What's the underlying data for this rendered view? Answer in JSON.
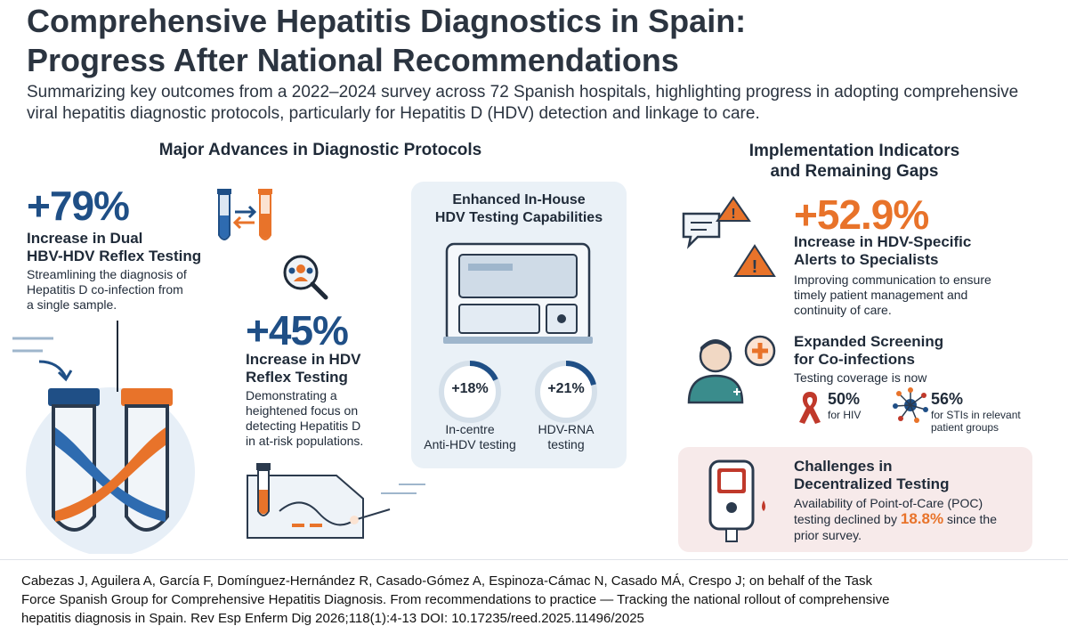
{
  "header": {
    "title_line1": "Comprehensive Hepatitis Diagnostics in Spain:",
    "title_line2": "Progress After National Recommendations",
    "subtitle": "Summarizing key outcomes from a 2022–2024 survey across 72 Spanish hospitals, highlighting progress in adopting comprehensive viral hepatitis diagnostic protocols, particularly for Hepatitis D (HDV) detection and linkage to care."
  },
  "left": {
    "heading": "Major Advances in Diagnostic Protocols",
    "stat1": {
      "value": "+79%",
      "title_line1": "Increase in Dual",
      "title_line2": "HBV-HDV Reflex Testing",
      "desc_line1": "Streamlining the diagnosis of",
      "desc_line2": "Hepatitis D co-infection from",
      "desc_line3": "a single sample."
    },
    "stat2": {
      "value": "+45%",
      "title_line1": "Increase in HDV",
      "title_line2": "Reflex Testing",
      "desc_line1": "Demonstrating a",
      "desc_line2": "heightened focus on",
      "desc_line3": "detecting Hepatitis D",
      "desc_line4": "in at-risk populations."
    }
  },
  "panel": {
    "title_line1": "Enhanced In-House",
    "title_line2": "HDV Testing Capabilities",
    "ring1": {
      "label": "+18%",
      "progress": 0.18,
      "cap_line1": "In-centre",
      "cap_line2": "Anti-HDV testing"
    },
    "ring2": {
      "label": "+21%",
      "progress": 0.21,
      "cap_line1": "HDV-RNA",
      "cap_line2": "testing"
    }
  },
  "right": {
    "heading_line1": "Implementation Indicators",
    "heading_line2": "and Remaining Gaps",
    "stat3": {
      "value": "+52.9%",
      "title_line1": "Increase in HDV-Specific",
      "title_line2": "Alerts to Specialists",
      "desc_line1": "Improving communication to ensure",
      "desc_line2": "timely patient management and",
      "desc_line3": "continuity of care."
    },
    "screening": {
      "title_line1": "Expanded Screening",
      "title_line2": "for Co-infections",
      "intro": "Testing coverage is now",
      "hiv_value": "50%",
      "hiv_label": "for HIV",
      "sti_value": "56%",
      "sti_label_line1": "for STIs in relevant",
      "sti_label_line2": "patient groups"
    },
    "challenge": {
      "title_line1": "Challenges in",
      "title_line2": "Decentralized Testing",
      "desc_line1": "Availability of Point-of-Care (POC)",
      "desc_pre": "testing declined by",
      "desc_value": "18.8%",
      "desc_post": "since the",
      "desc_line3": "prior survey."
    }
  },
  "citation": {
    "line1": "Cabezas J, Aguilera A, García F, Domínguez-Hernández R, Casado-Gómez A, Espinoza-Cámac N, Casado MÁ, Crespo J; on behalf of the Task",
    "line2": "Force Spanish Group for Comprehensive Hepatitis Diagnosis. From recommendations to practice — Tracking the national rollout of comprehensive",
    "line3": "hepatitis diagnosis in Spain. Rev Esp Enferm Dig 2026;118(1):4-13 DOI: 10.17235/reed.2025.11496/2025"
  },
  "colors": {
    "navy": "#1f4f86",
    "orange": "#e8732a",
    "panel_bg": "#eaf1f7",
    "challenge_bg": "#f7eaea",
    "red": "#c0392b"
  }
}
